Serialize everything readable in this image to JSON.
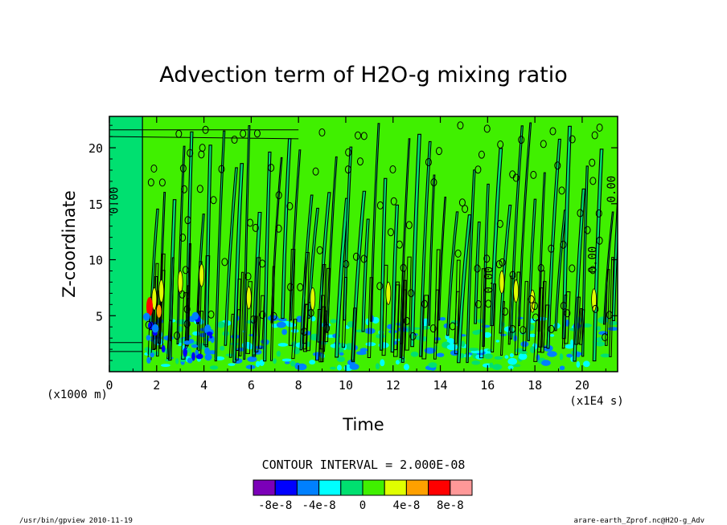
{
  "chart_data": {
    "type": "heatmap",
    "title": "Advection term of H2O-g mixing ratio",
    "xlabel": "Time",
    "ylabel": "Z-coordinate",
    "x_unit": "(x1E4 s)",
    "y_unit": "(x1000 m)",
    "xlim": [
      0,
      21.5
    ],
    "ylim": [
      0,
      22.8
    ],
    "x_ticks": [
      0,
      2,
      4,
      6,
      8,
      10,
      12,
      14,
      16,
      18,
      20
    ],
    "y_ticks": [
      5,
      10,
      15,
      20
    ],
    "x_tick_labels": [
      "0",
      "2",
      "4",
      "6",
      "8",
      "10",
      "12",
      "14",
      "16",
      "18",
      "20"
    ],
    "y_tick_labels": [
      "5",
      "10",
      "15",
      "20"
    ],
    "contour_interval": "CONTOUR INTERVAL = 2.000E-08",
    "contour_labels": [
      "0.00",
      "0.00",
      "0.00",
      "0.00"
    ],
    "colorbar": {
      "colors": [
        "#7b00b8",
        "#0000ff",
        "#0080ff",
        "#00ffff",
        "#00e070",
        "#40f000",
        "#e0ff00",
        "#ffa000",
        "#ff0000",
        "#ff9898"
      ],
      "tick_labels": [
        "-8e-8",
        "-4e-8",
        "0",
        "4e-8",
        "8e-8"
      ]
    },
    "grid": false
  },
  "footer": {
    "left": "/usr/bin/gpview  2010-11-19",
    "right": "arare-earth_Zprof.nc@H2O-g_Adv"
  }
}
